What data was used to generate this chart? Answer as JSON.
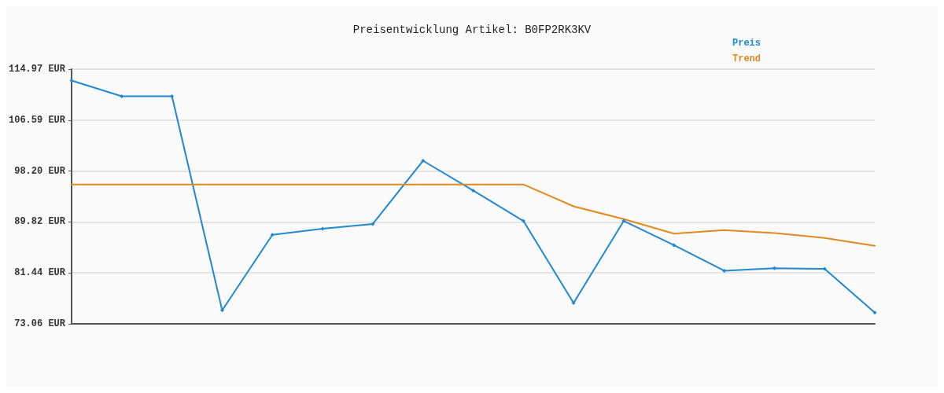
{
  "chart_data": {
    "type": "line",
    "title": "Preisentwicklung Artikel: B0FP2RK3KV",
    "categories": [
      null,
      null,
      null,
      null,
      null,
      null,
      null,
      null,
      null,
      null,
      null,
      null,
      null,
      null,
      null,
      null,
      null
    ],
    "series": [
      {
        "name": "Preis",
        "color": "#1f88d0",
        "marker": "diamond",
        "values": [
          113.1,
          110.5,
          110.5,
          75.3,
          87.7,
          88.7,
          89.5,
          99.9,
          95.0,
          90.0,
          76.5,
          90.0,
          86.0,
          81.8,
          82.2,
          82.1,
          74.9
        ]
      },
      {
        "name": "Trend",
        "color": "#e08a1e",
        "marker": "none",
        "values": [
          96.0,
          96.0,
          96.0,
          96.0,
          96.0,
          96.0,
          96.0,
          96.0,
          96.0,
          96.0,
          92.4,
          90.3,
          87.9,
          88.5,
          88.0,
          87.2,
          85.9
        ]
      }
    ],
    "ylim": [
      73.06,
      114.97
    ],
    "yticks": [
      {
        "value": 73.06,
        "label": "73.06 EUR"
      },
      {
        "value": 81.44,
        "label": "81.44 EUR"
      },
      {
        "value": 89.82,
        "label": "89.82 EUR"
      },
      {
        "value": 98.2,
        "label": "98.20 EUR"
      },
      {
        "value": 106.59,
        "label": "106.59 EUR"
      },
      {
        "value": 114.97,
        "label": "114.97 EUR"
      }
    ],
    "grid": "y",
    "legend": "top right",
    "tick_labels": "y",
    "line_style": "solid"
  }
}
